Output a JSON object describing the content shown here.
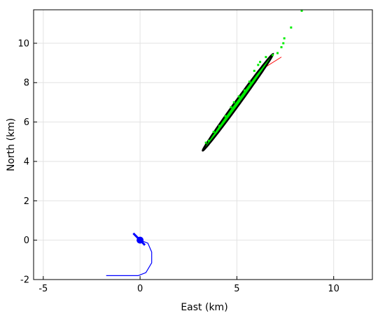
{
  "chart_data": {
    "type": "scatter",
    "xlabel": "East (km)",
    "ylabel": "North (km)",
    "xlim": [
      -5.5,
      12
    ],
    "ylim": [
      -2,
      11.7
    ],
    "xticks": [
      -5,
      0,
      5,
      10
    ],
    "yticks": [
      -2,
      0,
      2,
      4,
      6,
      8,
      10
    ],
    "grid": true,
    "colors": {
      "track": "#0000ff",
      "marker": "#0000ff",
      "red_line": "#ff0000",
      "ellipse": "#000000",
      "points": "#00ee00"
    },
    "series": [
      {
        "kind": "track",
        "points": [
          [
            -1.75,
            -1.8
          ],
          [
            -0.1,
            -1.8
          ],
          [
            0.3,
            -1.65
          ],
          [
            0.6,
            -1.15
          ],
          [
            0.6,
            -0.6
          ],
          [
            0.4,
            -0.15
          ],
          [
            0.0,
            0.0
          ]
        ]
      },
      {
        "kind": "marker",
        "point": [
          0.0,
          0.0
        ],
        "heading_start": [
          -0.35,
          0.35
        ],
        "heading_end": [
          0.25,
          -0.25
        ]
      },
      {
        "kind": "line",
        "points": [
          [
            6.0,
            8.5
          ],
          [
            7.3,
            9.3
          ]
        ]
      },
      {
        "kind": "ellipse",
        "center": [
          5.05,
          7.0
        ],
        "semi_major": 3.05,
        "semi_minor": 0.12,
        "angle_deg": 53.5
      },
      {
        "kind": "scatter",
        "points": [
          [
            3.4,
            4.95
          ],
          [
            3.55,
            5.05
          ],
          [
            3.8,
            5.5
          ],
          [
            4.1,
            5.8
          ],
          [
            4.4,
            6.3
          ],
          [
            4.7,
            6.75
          ],
          [
            4.85,
            7.0
          ],
          [
            5.1,
            7.3
          ],
          [
            5.4,
            7.6
          ],
          [
            5.65,
            8.05
          ],
          [
            5.9,
            8.6
          ],
          [
            6.1,
            8.9
          ],
          [
            6.2,
            9.05
          ],
          [
            6.5,
            9.3
          ],
          [
            6.85,
            9.4
          ],
          [
            7.1,
            9.5
          ],
          [
            7.3,
            9.8
          ],
          [
            7.4,
            10.0
          ],
          [
            7.45,
            10.25
          ],
          [
            7.8,
            10.8
          ],
          [
            8.35,
            11.65
          ]
        ]
      }
    ]
  }
}
